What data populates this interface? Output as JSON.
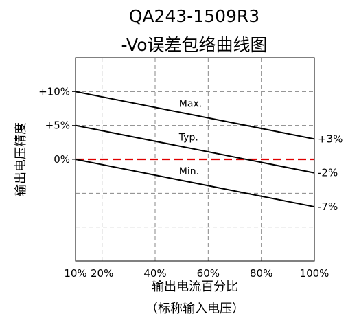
{
  "chart_data": {
    "type": "line",
    "title": "QA243-1509R3",
    "subtitle": "-Vo误差包络曲线图",
    "xlabel": "输出电流百分比",
    "xlabel_sub": "（标称输入电压）",
    "ylabel": "输出电压精度",
    "xlim": [
      10,
      100
    ],
    "ylim": [
      -15,
      15
    ],
    "x_ticks": [
      {
        "value": 10,
        "label": "10%"
      },
      {
        "value": 20,
        "label": "20%"
      },
      {
        "value": 40,
        "label": "40%"
      },
      {
        "value": 60,
        "label": "60%"
      },
      {
        "value": 80,
        "label": "80%"
      },
      {
        "value": 100,
        "label": "100%"
      }
    ],
    "y_ticks": [
      {
        "value": 10,
        "label": "+10%"
      },
      {
        "value": 5,
        "label": "+5%"
      },
      {
        "value": 0,
        "label": "0%"
      }
    ],
    "grid": true,
    "reference_line": {
      "value": 0,
      "color": "#e00000"
    },
    "series": [
      {
        "name": "Max.",
        "x": [
          10,
          100
        ],
        "y": [
          10,
          3
        ],
        "end_label": "+3%",
        "label_x": 49
      },
      {
        "name": "Typ.",
        "x": [
          10,
          100
        ],
        "y": [
          5,
          -2
        ],
        "end_label": "-2%",
        "label_x": 49
      },
      {
        "name": "Min.",
        "x": [
          10,
          100
        ],
        "y": [
          0,
          -7
        ],
        "end_label": "-7%",
        "label_x": 49
      }
    ]
  }
}
